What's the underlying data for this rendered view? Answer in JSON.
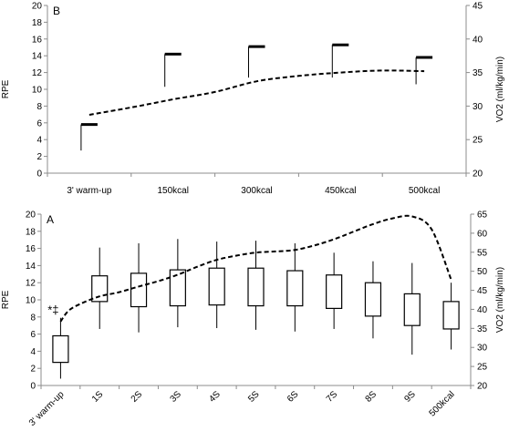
{
  "chart_data": [
    {
      "panel_label": "B",
      "type": "bar-with-errorbars-and-line",
      "categories": [
        "3' warm-up",
        "150kcal",
        "300kcal",
        "450kcal",
        "500kcal"
      ],
      "ylabel": "RPE",
      "ylim": [
        0,
        20
      ],
      "yticks": [
        "0",
        "2",
        "4",
        "6",
        "8",
        "10",
        "12",
        "14",
        "16",
        "18",
        "20"
      ],
      "y2label": "VO2 (ml/kg/min)",
      "y2lim": [
        20,
        45
      ],
      "y2ticks": [
        "20",
        "25",
        "30",
        "35",
        "40",
        "45"
      ],
      "rpe_mean": [
        5.8,
        14.2,
        15.1,
        15.3,
        13.8
      ],
      "rpe_lower": [
        2.7,
        10.3,
        11.4,
        11.4,
        10.6
      ],
      "vo2_curve": [
        [
          0,
          28.7
        ],
        [
          0.5,
          29.8
        ],
        [
          1,
          31.0
        ],
        [
          1.5,
          32.1
        ],
        [
          2,
          33.7
        ],
        [
          2.5,
          34.5
        ],
        [
          3,
          35.0
        ],
        [
          3.5,
          35.3
        ],
        [
          4,
          35.2
        ]
      ],
      "grid": false,
      "legend": "none"
    },
    {
      "panel_label": "A",
      "type": "boxplot-with-line",
      "categories": [
        "3' warm-up",
        "1S",
        "2S",
        "3S",
        "4S",
        "5S",
        "6S",
        "7S",
        "8S",
        "9S",
        "500kcal"
      ],
      "ylabel": "RPE",
      "ylim": [
        0,
        20
      ],
      "yticks": [
        "0",
        "2",
        "4",
        "6",
        "8",
        "10",
        "12",
        "14",
        "16",
        "18",
        "20"
      ],
      "y2label": "VO2 (ml/kg/min)",
      "y2lim": [
        20,
        65
      ],
      "y2ticks": [
        "20",
        "25",
        "30",
        "35",
        "40",
        "45",
        "50",
        "55",
        "60",
        "65"
      ],
      "boxes": [
        {
          "whisker_low": 0.8,
          "q1": 2.7,
          "q3": 5.8,
          "whisker_high": 7.9
        },
        {
          "whisker_low": 6.6,
          "q1": 9.8,
          "q3": 12.8,
          "whisker_high": 16.1
        },
        {
          "whisker_low": 6.2,
          "q1": 9.2,
          "q3": 13.1,
          "whisker_high": 16.6
        },
        {
          "whisker_low": 6.8,
          "q1": 9.3,
          "q3": 13.5,
          "whisker_high": 17.1
        },
        {
          "whisker_low": 6.7,
          "q1": 9.4,
          "q3": 13.7,
          "whisker_high": 16.8
        },
        {
          "whisker_low": 6.5,
          "q1": 9.3,
          "q3": 13.7,
          "whisker_high": 16.9
        },
        {
          "whisker_low": 6.3,
          "q1": 9.3,
          "q3": 13.4,
          "whisker_high": 16.6
        },
        {
          "whisker_low": 6.6,
          "q1": 9.0,
          "q3": 12.9,
          "whisker_high": 15.5
        },
        {
          "whisker_low": 5.5,
          "q1": 8.1,
          "q3": 12.0,
          "whisker_high": 14.5
        },
        {
          "whisker_low": 3.6,
          "q1": 7.0,
          "q3": 10.7,
          "whisker_high": 14.3
        },
        {
          "whisker_low": 4.2,
          "q1": 6.6,
          "q3": 9.8,
          "whisker_high": 12.0
        }
      ],
      "vo2_curve": [
        [
          0,
          36.8
        ],
        [
          0.2,
          39.6
        ],
        [
          0.5,
          41.4
        ],
        [
          1,
          43.4
        ],
        [
          1.5,
          44.5
        ],
        [
          2,
          46.0
        ],
        [
          2.5,
          47.4
        ],
        [
          3,
          49.1
        ],
        [
          3.5,
          51.2
        ],
        [
          4,
          53.0
        ],
        [
          4.5,
          54.1
        ],
        [
          5,
          54.9
        ],
        [
          5.5,
          55.2
        ],
        [
          6,
          55.6
        ],
        [
          6.5,
          56.8
        ],
        [
          7,
          58.4
        ],
        [
          7.5,
          60.4
        ],
        [
          8,
          62.4
        ],
        [
          8.5,
          63.9
        ],
        [
          9,
          64.4
        ],
        [
          9.5,
          61.0
        ],
        [
          10,
          47.8
        ]
      ],
      "annotation": "*‡",
      "grid": false,
      "legend": "none"
    }
  ]
}
